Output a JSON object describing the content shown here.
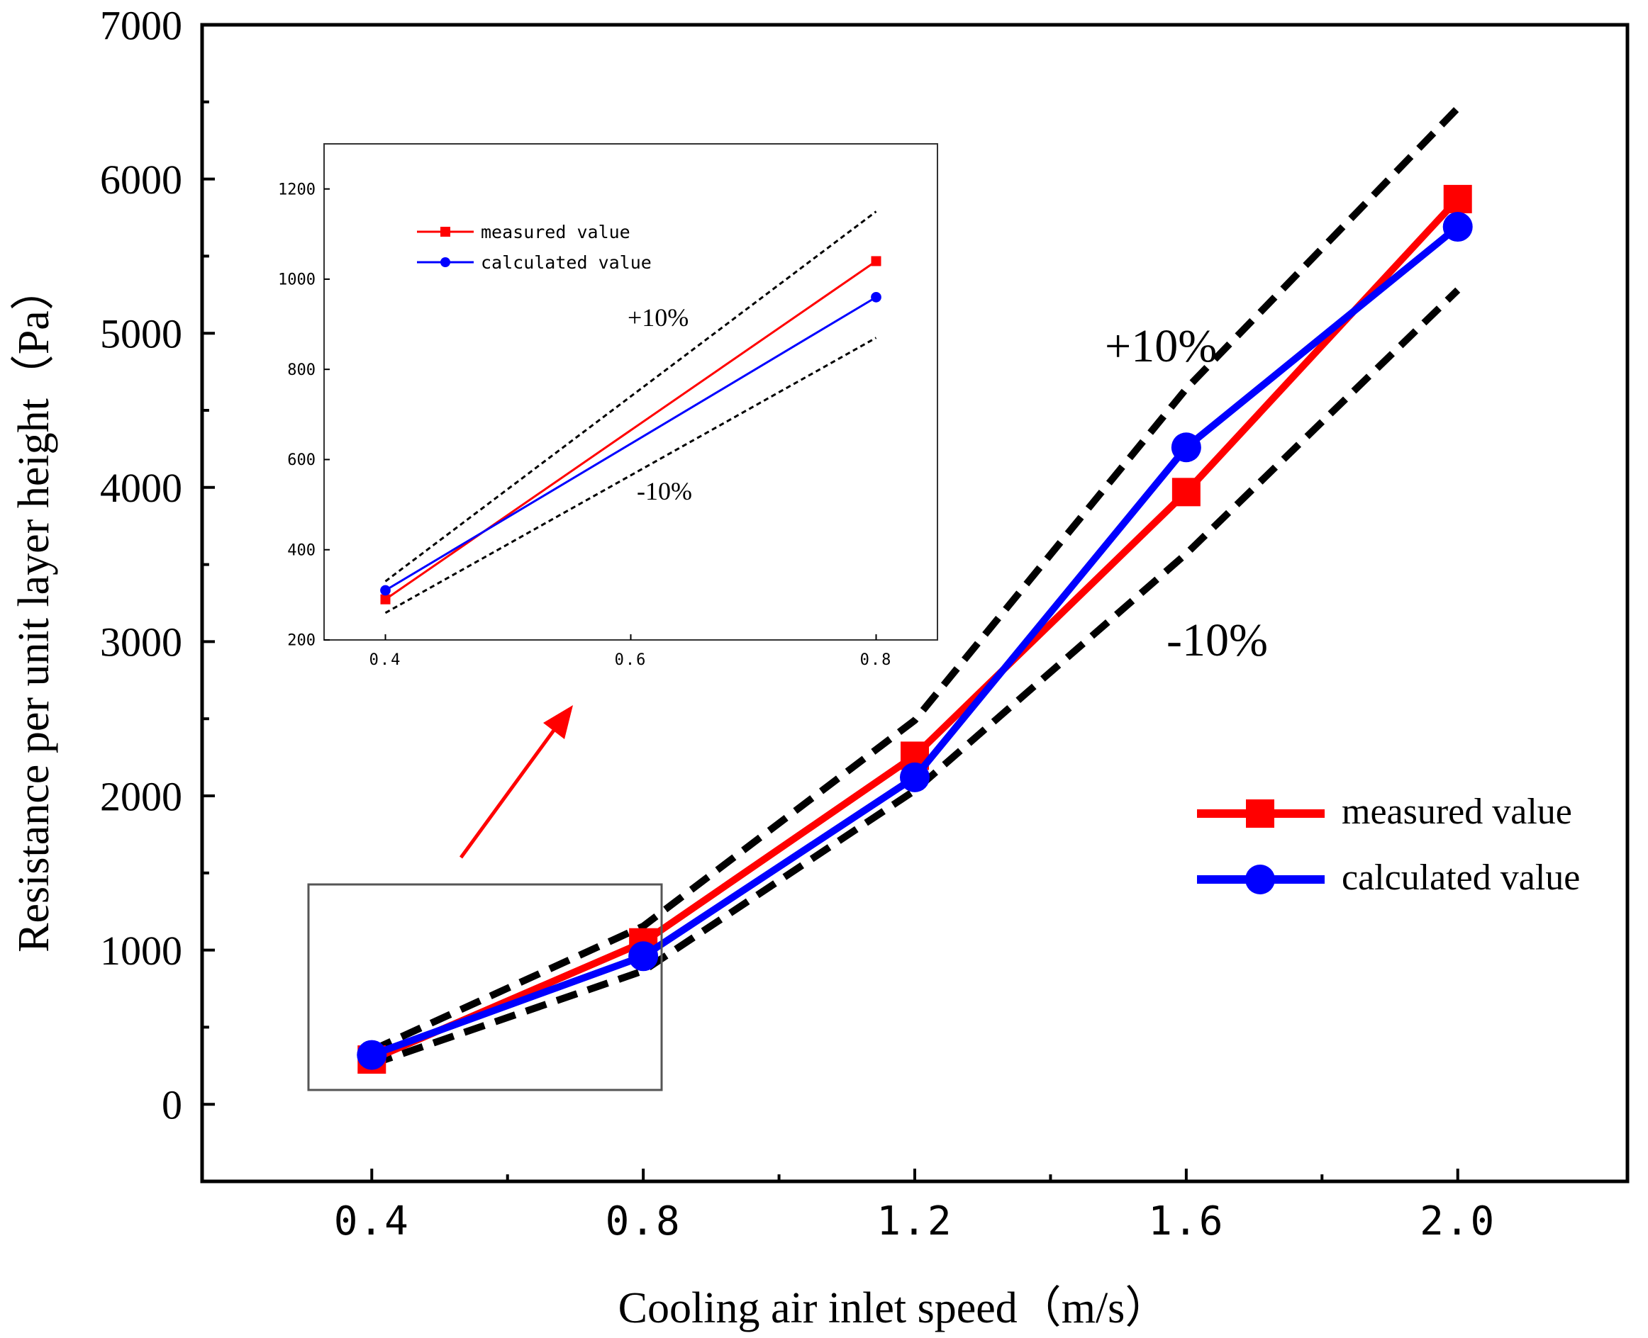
{
  "chart_data": [
    {
      "type": "line",
      "role": "main",
      "xlabel": "Cooling air inlet speed（m/s）",
      "ylabel": "Resistance per unit layer height（Pa）",
      "xlim": [
        0.15,
        2.25
      ],
      "ylim": [
        -500,
        7000
      ],
      "xticks": [
        0.4,
        0.8,
        1.2,
        1.6,
        2.0
      ],
      "xtick_labels": [
        "0.4",
        "0.8",
        "1.2",
        "1.6",
        "2.0"
      ],
      "yticks": [
        0,
        1000,
        2000,
        3000,
        4000,
        5000,
        6000,
        7000
      ],
      "ytick_labels": [
        "0",
        "1000",
        "2000",
        "3000",
        "4000",
        "5000",
        "6000",
        "7000"
      ],
      "x": [
        0.4,
        0.8,
        1.2,
        1.6,
        2.0
      ],
      "series": [
        {
          "name": "measured value",
          "color": "#ff0000",
          "marker": "square",
          "values": [
            290,
            1050,
            2260,
            3970,
            5870
          ]
        },
        {
          "name": "calculated value",
          "color": "#0000ff",
          "marker": "circle",
          "values": [
            320,
            960,
            2120,
            4260,
            5690
          ]
        }
      ],
      "bounds": {
        "upper": {
          "label": "+10%",
          "values": [
            350,
            1155,
            2490,
            4640,
            6460
          ]
        },
        "lower": {
          "label": "-10%",
          "values": [
            260,
            865,
            2035,
            3570,
            5280
          ]
        }
      },
      "legend": "right"
    },
    {
      "type": "line",
      "role": "inset",
      "xlim": [
        0.35,
        0.85
      ],
      "ylim": [
        200,
        1300
      ],
      "xticks": [
        0.4,
        0.6,
        0.8
      ],
      "xtick_labels": [
        "0.4",
        "0.6",
        "0.8"
      ],
      "yticks": [
        200,
        400,
        600,
        800,
        1000,
        1200
      ],
      "ytick_labels": [
        "200",
        "400",
        "600",
        "800",
        "1000",
        "1200"
      ],
      "x": [
        0.4,
        0.8
      ],
      "series": [
        {
          "name": "measured value",
          "color": "#ff0000",
          "marker": "square",
          "values": [
            290,
            1040
          ]
        },
        {
          "name": "calculated value",
          "color": "#0000ff",
          "marker": "circle",
          "values": [
            310,
            960
          ]
        }
      ],
      "bounds": {
        "upper": {
          "label": "+10%",
          "values": [
            330,
            1150
          ]
        },
        "lower": {
          "label": "-10%",
          "values": [
            260,
            870
          ]
        }
      },
      "legend": "top-left"
    }
  ]
}
